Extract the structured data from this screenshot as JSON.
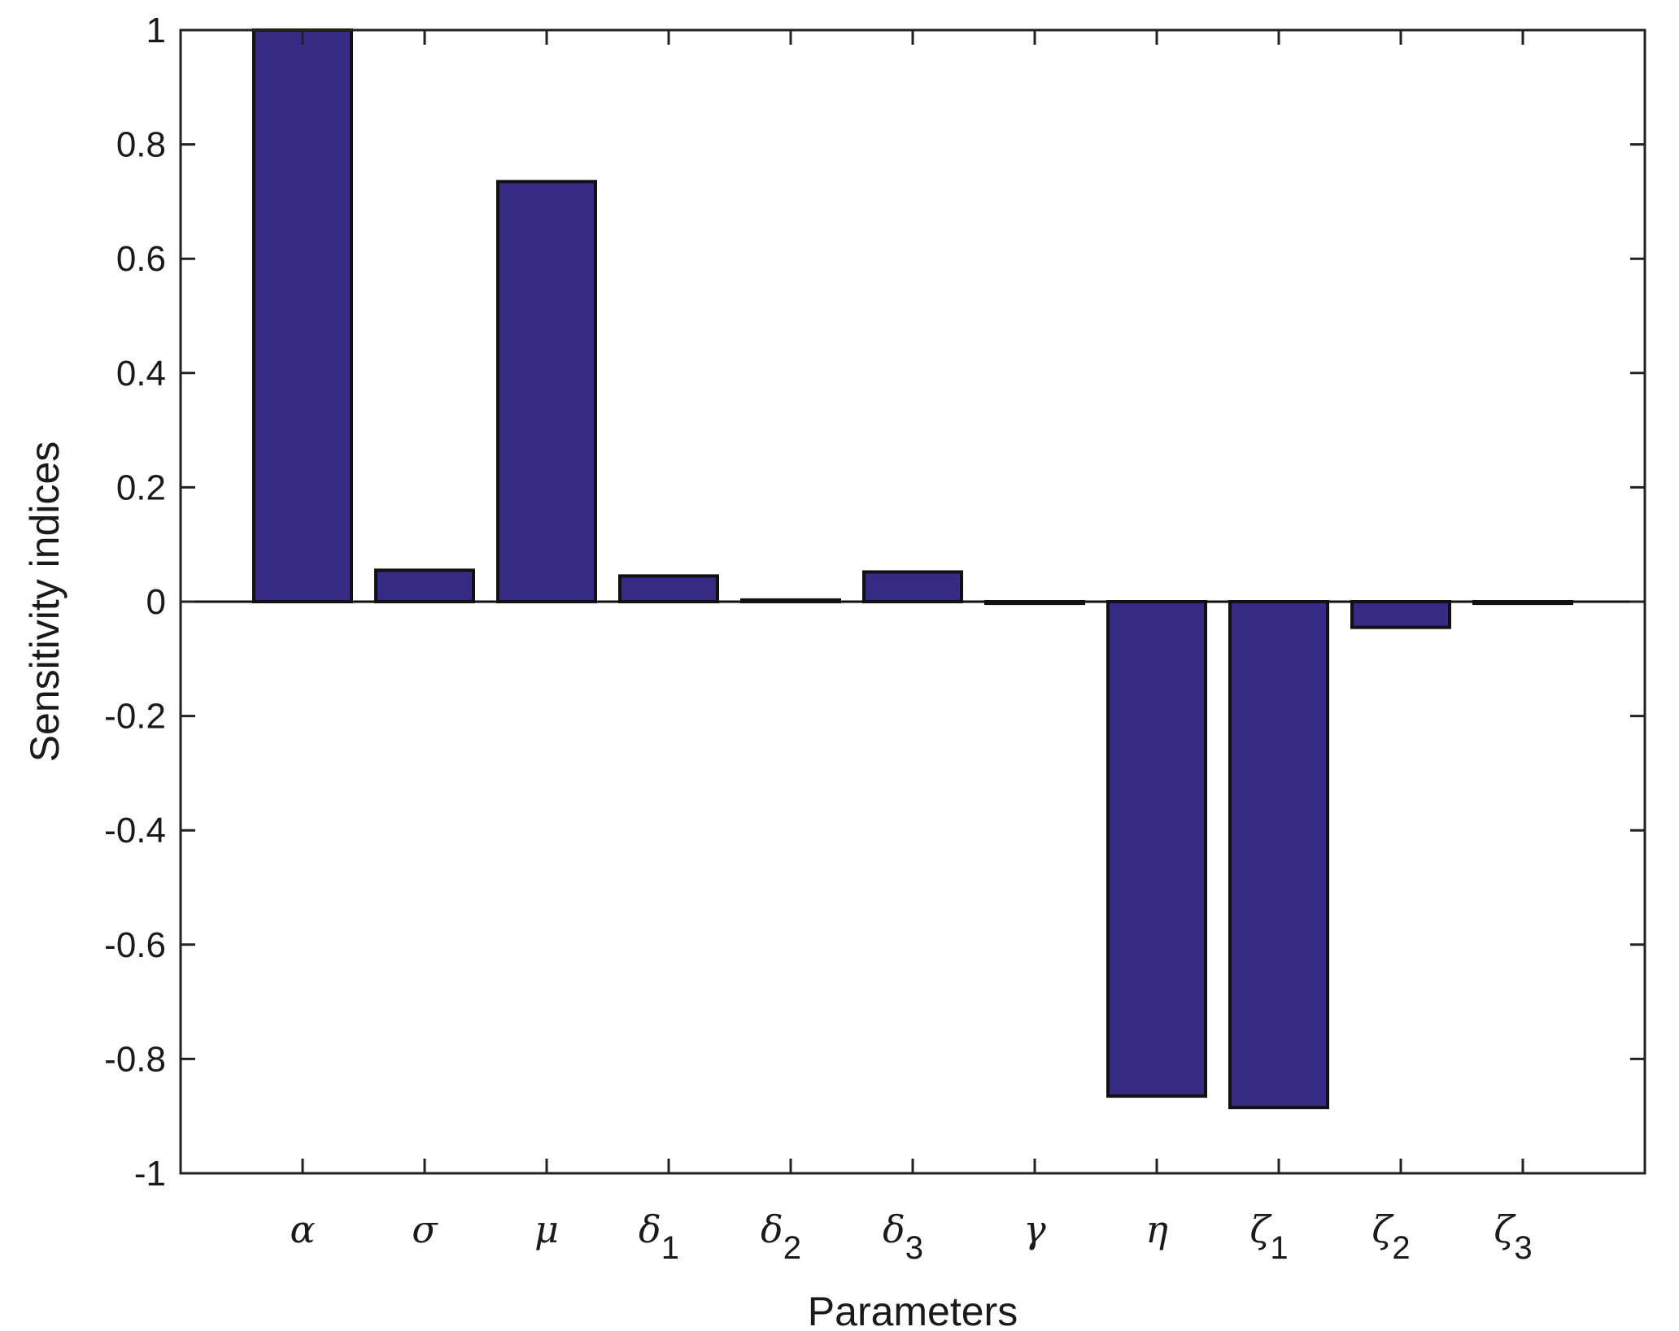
{
  "chart_data": {
    "type": "bar",
    "categories": [
      {
        "symbol": "α",
        "sub": ""
      },
      {
        "symbol": "σ",
        "sub": ""
      },
      {
        "symbol": "μ",
        "sub": ""
      },
      {
        "symbol": "δ",
        "sub": "1"
      },
      {
        "symbol": "δ",
        "sub": "2"
      },
      {
        "symbol": "δ",
        "sub": "3"
      },
      {
        "symbol": "γ",
        "sub": ""
      },
      {
        "symbol": "η",
        "sub": ""
      },
      {
        "symbol": "ζ",
        "sub": "1"
      },
      {
        "symbol": "ζ",
        "sub": "2"
      },
      {
        "symbol": "ζ",
        "sub": "3"
      }
    ],
    "values": [
      1.0,
      0.055,
      0.735,
      0.045,
      0.003,
      0.052,
      -0.003,
      -0.865,
      -0.885,
      -0.045,
      -0.003
    ],
    "xlabel": "Parameters",
    "ylabel": "Sensitivity indices",
    "ylim": [
      -1,
      1
    ],
    "yticks": [
      -1,
      -0.8,
      -0.6,
      -0.4,
      -0.2,
      0,
      0.2,
      0.4,
      0.6,
      0.8,
      1
    ],
    "ytick_labels": [
      "-1",
      "-0.8",
      "-0.6",
      "-0.4",
      "-0.2",
      "0",
      "0.2",
      "0.4",
      "0.6",
      "0.8",
      "1"
    ],
    "grid": false,
    "bar_color": "#372a85",
    "edge_color": "#111111"
  }
}
